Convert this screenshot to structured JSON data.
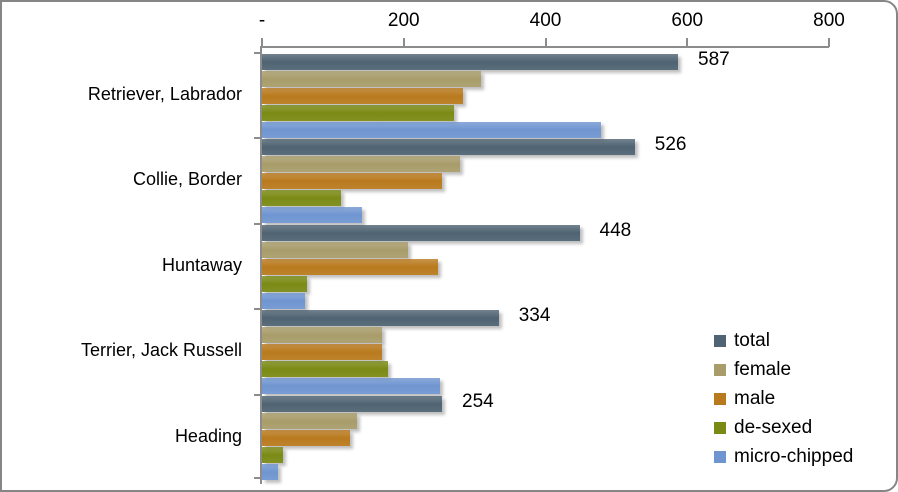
{
  "chart_data": {
    "type": "bar",
    "orientation": "horizontal",
    "title": "",
    "xlabel": "",
    "ylabel": "",
    "xlim": [
      0,
      800
    ],
    "x_ticks": [
      "-",
      "200",
      "400",
      "600",
      "800"
    ],
    "x_tick_values": [
      0,
      200,
      400,
      600,
      800
    ],
    "x_axis_position": "top",
    "grid": false,
    "legend_position": "right-bottom",
    "categories": [
      "Retriever, Labrador",
      "Collie, Border",
      "Huntaway",
      "Terrier, Jack Russell",
      "Heading"
    ],
    "series": [
      {
        "name": "total",
        "color": "#4f6372",
        "values": [
          587,
          526,
          448,
          334,
          254
        ]
      },
      {
        "name": "female",
        "color": "#a89c6a",
        "values": [
          309,
          279,
          206,
          170,
          134
        ]
      },
      {
        "name": "male",
        "color": "#b97a1e",
        "values": [
          283,
          254,
          248,
          169,
          124
        ]
      },
      {
        "name": "de-sexed",
        "color": "#7a8a14",
        "values": [
          271,
          111,
          63,
          178,
          30
        ]
      },
      {
        "name": "micro-chipped",
        "color": "#6f95d0",
        "values": [
          478,
          141,
          61,
          251,
          23
        ]
      }
    ],
    "data_labels": {
      "series": "total",
      "values": [
        "587",
        "526",
        "448",
        "334",
        "254"
      ]
    }
  }
}
